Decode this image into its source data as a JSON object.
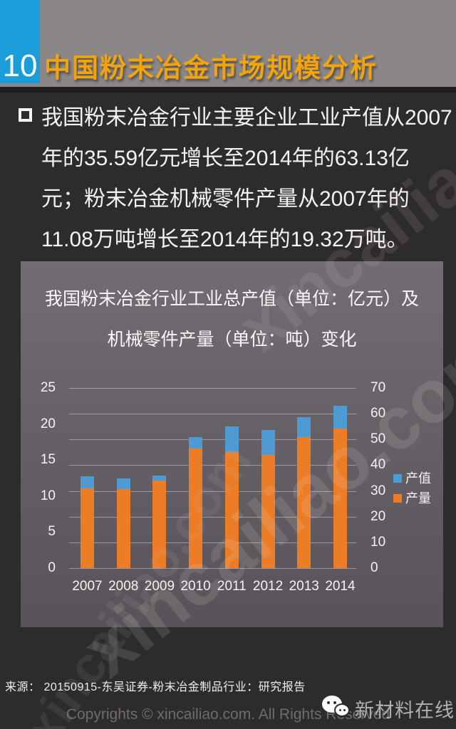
{
  "page": {
    "number": "10",
    "title": "中国粉末冶金市场规模分析"
  },
  "bullet": {
    "lines": [
      "我国粉末冶金行业主要企业工业产值从2007",
      "年的35.59亿元增长至2014年的63.13亿",
      "元；粉末冶金机械零件产量从2007年的",
      "11.08万吨增长至2014年的19.32万吨。"
    ]
  },
  "chart_panel": {
    "title_lines": [
      "我国粉末冶金行业工业总产值（单位：亿元）及",
      "机械零件产量（单位：吨）变化"
    ]
  },
  "chart_data": {
    "type": "bar",
    "title": "我国粉末冶金行业工业总产值（单位：亿元）及机械零件产量（单位：吨）变化",
    "categories": [
      "2007",
      "2008",
      "2009",
      "2010",
      "2011",
      "2012",
      "2013",
      "2014"
    ],
    "series": [
      {
        "name": "产值",
        "unit": "亿元",
        "axis": "right",
        "color": "#4e9ad3",
        "values": [
          35.59,
          35.0,
          36.0,
          50.8,
          55.0,
          53.6,
          58.6,
          63.13
        ]
      },
      {
        "name": "产量",
        "unit": "万吨",
        "axis": "left",
        "color": "#ec7c25",
        "values": [
          11.08,
          11.0,
          12.2,
          16.6,
          16.1,
          15.7,
          18.2,
          19.32
        ]
      }
    ],
    "left_axis": {
      "min": 0,
      "max": 25,
      "ticks": [
        0,
        5,
        10,
        15,
        20,
        25
      ]
    },
    "right_axis": {
      "min": 0,
      "max": 70,
      "ticks": [
        0,
        10,
        20,
        30,
        40,
        50,
        60,
        70
      ]
    },
    "legend": [
      "产值",
      "产量"
    ],
    "legend_position": "right-middle",
    "grid": true,
    "bar_style": "overlapped",
    "colors": {
      "grid": "#beb9be",
      "tick_text": "#f5f3f5"
    }
  },
  "footer": {
    "source": "来源：  20150915-东吴证券-粉末冶金制品行业：研究报告",
    "copyright": "Copyrights © xincailiao.com. All Rights Reserved",
    "brand": "新材料在线"
  },
  "watermark": {
    "text": "xincailiao.com"
  },
  "theme": {
    "header_bg": "#8b8788",
    "page_num_bg": "#199ed9",
    "title_color": "#f2a40c",
    "body_bg": "#2e2b2e",
    "divider": "#1f1d1f"
  }
}
